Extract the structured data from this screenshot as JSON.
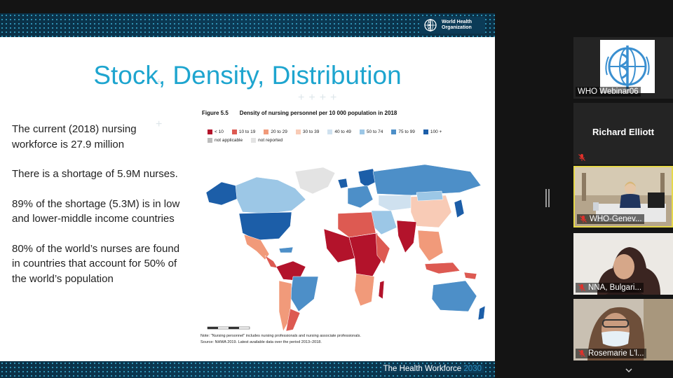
{
  "slide": {
    "title": "Stock, Density, Distribution",
    "logo_text": "World Health Organization",
    "footer_brand": "The Health Workforce",
    "footer_year": "2030",
    "bullets": [
      "The current (2018) nursing workforce is 27.9 million",
      "There is a shortage of 5.9M nurses.",
      "89% of the shortage (5.3M) is in low and lower-middle income countries",
      "80% of the world’s nurses are found in countries that account for 50% of the world’s population"
    ],
    "figure": {
      "number": "Figure 5.5",
      "title": "Density of nursing personnel per 10 000 population in 2018",
      "legend": [
        {
          "label": "< 10",
          "color": "#b3132b"
        },
        {
          "label": "10 to 19",
          "color": "#dd5a52"
        },
        {
          "label": "20 to 29",
          "color": "#f19a7a"
        },
        {
          "label": "30 to 39",
          "color": "#f8cbb6"
        },
        {
          "label": "40 to 49",
          "color": "#cfe1ef"
        },
        {
          "label": "50 to 74",
          "color": "#9cc7e6"
        },
        {
          "label": "75 to 99",
          "color": "#4d8fc8"
        },
        {
          "label": "100 +",
          "color": "#1c5ea8"
        },
        {
          "label": "not applicable",
          "color": "#bcbcbc"
        },
        {
          "label": "not reported",
          "color": "#e3e3e3"
        }
      ],
      "note": "Note: \"Nursing personnel\" includes nursing professionals and nursing associate professionals.",
      "source": "Source: NHWA 2019. Latest available data over the period 2013–2018."
    }
  },
  "participants": [
    {
      "name": "WHO Webinar06",
      "avatar": "who-logo",
      "muted": false
    },
    {
      "name": "Richard Elliott",
      "muted": true
    },
    {
      "name": "WHO-Genev...",
      "muted": true,
      "active": true
    },
    {
      "name": "NNA, Bulgari...",
      "muted": true
    },
    {
      "name": "Rosemarie L'l...",
      "muted": true
    }
  ],
  "colors": {
    "accent_title": "#1ea5cf",
    "active_speaker": "#e6d84a",
    "muted_icon": "#e0312b"
  }
}
